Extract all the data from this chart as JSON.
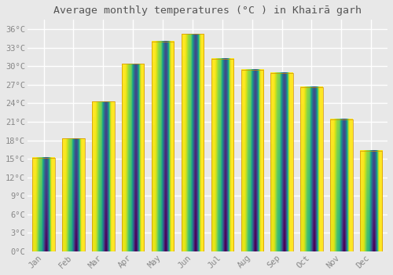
{
  "title": "Average monthly temperatures (°C ) in Khairā garh",
  "months": [
    "Jan",
    "Feb",
    "Mar",
    "Apr",
    "May",
    "Jun",
    "Jul",
    "Aug",
    "Sep",
    "Oct",
    "Nov",
    "Dec"
  ],
  "values": [
    15.2,
    18.3,
    24.3,
    30.4,
    34.0,
    35.2,
    31.2,
    29.4,
    28.9,
    26.6,
    21.4,
    16.3
  ],
  "bar_color_top": "#FFCF40",
  "bar_color_bottom": "#F5A800",
  "bar_edge_color": "#D49000",
  "background_color": "#e8e8e8",
  "plot_bg_color": "#e8e8e8",
  "grid_color": "#ffffff",
  "ytick_labels": [
    "0°C",
    "3°C",
    "6°C",
    "9°C",
    "12°C",
    "15°C",
    "18°C",
    "21°C",
    "24°C",
    "27°C",
    "30°C",
    "33°C",
    "36°C"
  ],
  "ytick_values": [
    0,
    3,
    6,
    9,
    12,
    15,
    18,
    21,
    24,
    27,
    30,
    33,
    36
  ],
  "ylim": [
    0,
    37.5
  ],
  "title_fontsize": 9.5,
  "tick_fontsize": 7.5,
  "title_color": "#555555",
  "tick_color": "#888888",
  "bar_width": 0.75
}
